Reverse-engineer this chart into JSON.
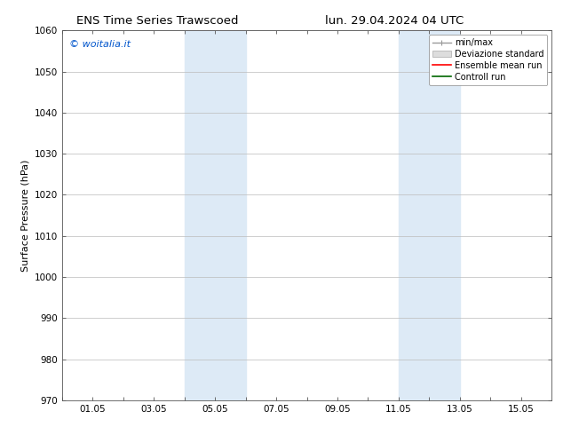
{
  "title_left": "ENS Time Series Trawscoed",
  "title_right": "lun. 29.04.2024 04 UTC",
  "ylabel": "Surface Pressure (hPa)",
  "ylim": [
    970,
    1060
  ],
  "yticks": [
    970,
    980,
    990,
    1000,
    1010,
    1020,
    1030,
    1040,
    1050,
    1060
  ],
  "xlim_min": 0,
  "xlim_max": 16,
  "xtick_labels": [
    "",
    "01.05",
    "",
    "03.05",
    "",
    "05.05",
    "",
    "07.05",
    "",
    "09.05",
    "",
    "11.05",
    "",
    "13.05",
    "",
    "15.05"
  ],
  "xtick_positions": [
    0,
    1,
    2,
    3,
    4,
    5,
    6,
    7,
    8,
    9,
    10,
    11,
    12,
    13,
    14,
    15
  ],
  "shaded_regions": [
    {
      "xmin": 4.0,
      "xmax": 6.0,
      "color": "#ddeaf6"
    },
    {
      "xmin": 11.0,
      "xmax": 13.0,
      "color": "#ddeaf6"
    }
  ],
  "watermark_text": "© woitalia.it",
  "watermark_color": "#0055cc",
  "legend_entries": [
    {
      "label": "min/max",
      "color": "#999999",
      "lw": 1.0
    },
    {
      "label": "Deviazione standard",
      "facecolor": "#dddddd",
      "edgecolor": "#aaaaaa"
    },
    {
      "label": "Ensemble mean run",
      "color": "#ff0000",
      "lw": 1.2
    },
    {
      "label": "Controll run",
      "color": "#006600",
      "lw": 1.2
    }
  ],
  "background_color": "#ffffff",
  "grid_color": "#bbbbbb",
  "title_fontsize": 9.5,
  "axis_label_fontsize": 8,
  "tick_fontsize": 7.5,
  "legend_fontsize": 7,
  "watermark_fontsize": 8
}
